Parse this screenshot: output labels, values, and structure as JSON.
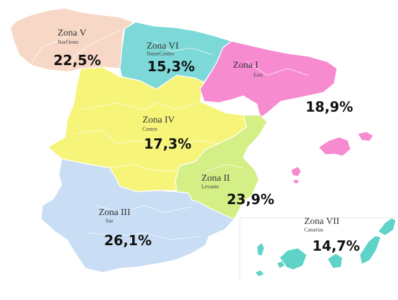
{
  "colors": {
    "zona_i": "#f78bd0",
    "zona_ii": "#d4ef86",
    "zona_iii": "#c9ddf5",
    "zona_iv": "#f7f47a",
    "zona_v": "#f7d8c6",
    "zona_vi": "#7dd9d8",
    "zona_vii": "#5fd3c8"
  },
  "zones": {
    "zona_i": {
      "name": "Zona I",
      "subtitle": "Este",
      "value": "18,9%"
    },
    "zona_ii": {
      "name": "Zona II",
      "subtitle": "Levante",
      "value": "23,9%"
    },
    "zona_iii": {
      "name": "Zona III",
      "subtitle": "Sur",
      "value": "26,1%"
    },
    "zona_iv": {
      "name": "Zona IV",
      "subtitle": "Centro",
      "value": "17,3%"
    },
    "zona_v": {
      "name": "Zona V",
      "subtitle": "NorOeste",
      "value": "22,5%"
    },
    "zona_vi": {
      "name": "Zona VI",
      "subtitle": "NorteCentro",
      "value": "15,3%"
    },
    "zona_vii": {
      "name": "Zona VII",
      "subtitle": "Canarias",
      "value": "14,7%"
    }
  }
}
